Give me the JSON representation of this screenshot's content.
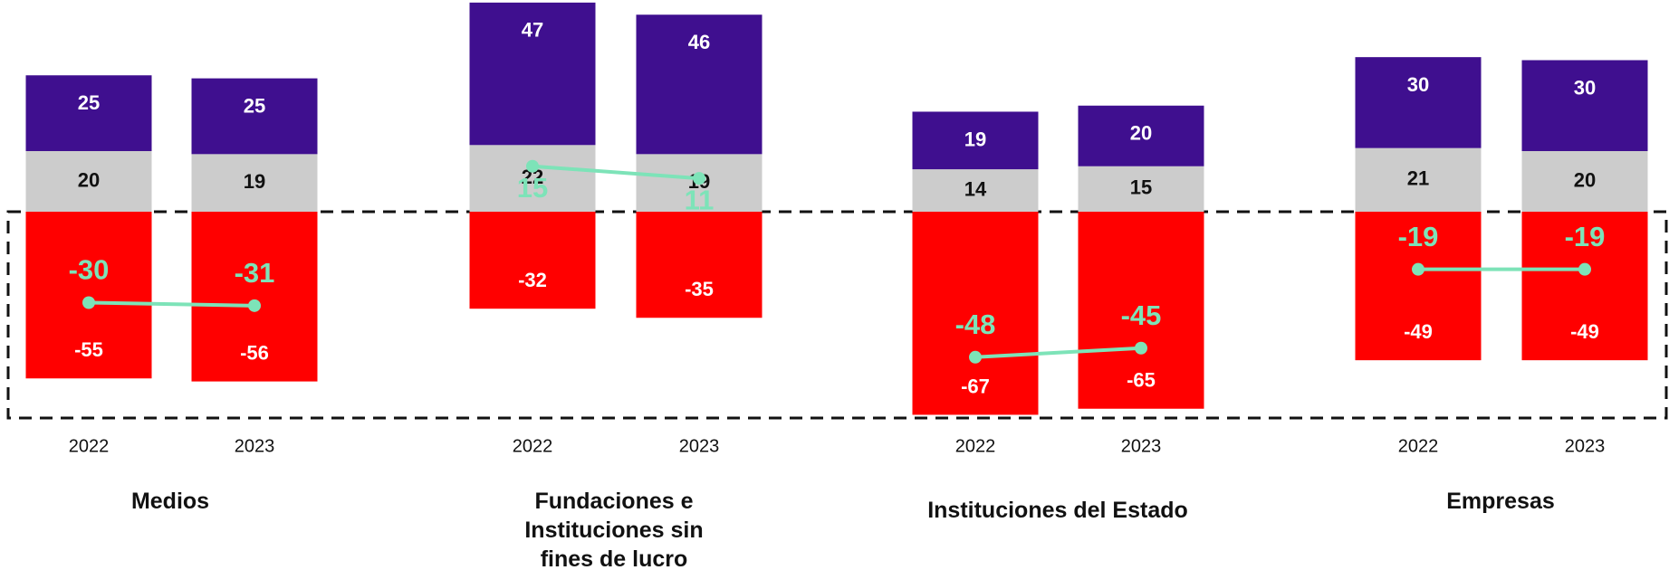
{
  "chart_data": {
    "type": "bar",
    "stacked": true,
    "groups": [
      "Medios",
      "Fundaciones e Instituciones sin fines de lucro",
      "Instituciones del Estado",
      "Empresas"
    ],
    "categories": [
      "2022",
      "2023",
      "2022",
      "2023",
      "2022",
      "2023",
      "2022",
      "2023"
    ],
    "series": [
      {
        "color": "#ff0000",
        "values": [
          -55,
          -56,
          -32,
          -35,
          -67,
          -65,
          -49,
          -49
        ]
      },
      {
        "color": "#cccccc",
        "values": [
          20,
          19,
          22,
          19,
          14,
          15,
          21,
          20
        ]
      },
      {
        "color": "#3f0f8f",
        "values": [
          25,
          25,
          47,
          46,
          19,
          20,
          30,
          30
        ]
      },
      {
        "type": "line",
        "color": "#7de3b8",
        "values": [
          -30,
          -31,
          15,
          11,
          -48,
          -45,
          -19,
          -19
        ]
      }
    ]
  }
}
